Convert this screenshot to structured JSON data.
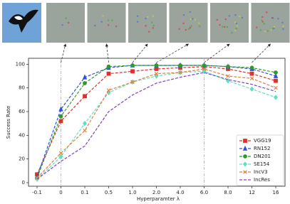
{
  "chart_data": {
    "type": "line",
    "x_label": "Hyperparamter λ",
    "y_label": "Success Rate",
    "categories": [
      "-0.1",
      "0",
      "0.1",
      "0.5",
      "1.0",
      "2.0",
      "4.0",
      "6.0",
      "8.0",
      "12",
      "16"
    ],
    "ylim": [
      -3,
      105
    ],
    "yticks": [
      0,
      20,
      40,
      60,
      80,
      100
    ],
    "vline_categories": [
      "0",
      "6.0"
    ],
    "legend": "lower right",
    "series": [
      {
        "name": "VGG19",
        "color": "#e0302a",
        "marker": "square",
        "values": [
          7,
          52,
          73,
          92,
          94,
          96,
          97,
          98,
          96,
          92,
          86
        ]
      },
      {
        "name": "RN152",
        "color": "#2f4fe0",
        "marker": "triangle",
        "values": [
          5,
          62,
          89,
          97,
          99,
          99,
          99,
          99,
          98,
          96,
          90
        ]
      },
      {
        "name": "DN201",
        "color": "#2e9a2e",
        "marker": "circle",
        "values": [
          4,
          56,
          84,
          98,
          99,
          99,
          99,
          99,
          98,
          97,
          93
        ]
      },
      {
        "name": "SE154",
        "color": "#5fe0c0",
        "marker": "diamond",
        "values": [
          3,
          22,
          50,
          76,
          85,
          90,
          93,
          94,
          86,
          79,
          72
        ]
      },
      {
        "name": "IncV3",
        "color": "#e08040",
        "marker": "x",
        "values": [
          4,
          25,
          44,
          78,
          85,
          92,
          93,
          96,
          90,
          88,
          80
        ]
      },
      {
        "name": "IncRes",
        "color": "#8040c0",
        "marker": "none",
        "values": [
          3,
          18,
          31,
          60,
          74,
          84,
          89,
          93,
          87,
          83,
          77
        ]
      }
    ]
  }
}
